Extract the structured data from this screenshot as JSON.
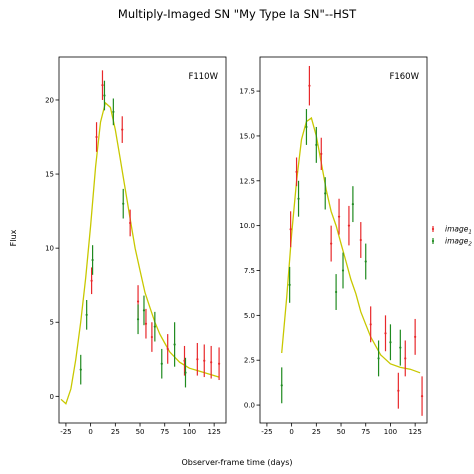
{
  "figure": {
    "title": "Multiply-Imaged SN \"My Type Ia SN\"--HST",
    "xlabel": "Observer-frame time (days)",
    "ylabel": "Flux"
  },
  "legend": {
    "placement": "right-center",
    "entries": [
      {
        "label": "image",
        "subscript": "1",
        "color": "#e8282b"
      },
      {
        "label": "image",
        "subscript": "2",
        "color": "#1f8a1f"
      }
    ]
  },
  "chart_data": [
    {
      "type": "scatter",
      "panel_label": "F110W",
      "xlim": [
        -32,
        137
      ],
      "ylim": [
        -1.8,
        22.9
      ],
      "xticks": [
        -25,
        0,
        25,
        50,
        75,
        100,
        125
      ],
      "yticks": [
        0,
        5,
        10,
        15,
        20
      ],
      "model_color": "#c8c800",
      "series": [
        {
          "name": "image1",
          "color": "#e8282b",
          "points": [
            {
              "x": 1,
              "y": 7.8,
              "err": 0.9
            },
            {
              "x": 6,
              "y": 17.5,
              "err": 1.0
            },
            {
              "x": 12,
              "y": 21.0,
              "err": 1.0
            },
            {
              "x": 32,
              "y": 18.0,
              "err": 0.9
            },
            {
              "x": 40,
              "y": 11.7,
              "err": 0.9
            },
            {
              "x": 48,
              "y": 6.4,
              "err": 1.1
            },
            {
              "x": 56,
              "y": 4.9,
              "err": 1.0
            },
            {
              "x": 62,
              "y": 4.0,
              "err": 1.0
            },
            {
              "x": 78,
              "y": 3.2,
              "err": 1.0
            },
            {
              "x": 95,
              "y": 2.4,
              "err": 1.0
            },
            {
              "x": 108,
              "y": 2.5,
              "err": 1.1
            },
            {
              "x": 115,
              "y": 2.4,
              "err": 1.1
            },
            {
              "x": 122,
              "y": 2.3,
              "err": 1.1
            },
            {
              "x": 130,
              "y": 2.2,
              "err": 1.1
            }
          ]
        },
        {
          "name": "image2",
          "color": "#1f8a1f",
          "points": [
            {
              "x": -10,
              "y": 1.8,
              "err": 1.0
            },
            {
              "x": -4,
              "y": 5.5,
              "err": 1.0
            },
            {
              "x": 2,
              "y": 9.2,
              "err": 1.0
            },
            {
              "x": 14,
              "y": 20.3,
              "err": 1.0
            },
            {
              "x": 23,
              "y": 19.2,
              "err": 0.9
            },
            {
              "x": 33,
              "y": 13.0,
              "err": 1.0
            },
            {
              "x": 48,
              "y": 5.2,
              "err": 1.0
            },
            {
              "x": 54,
              "y": 5.8,
              "err": 1.0
            },
            {
              "x": 65,
              "y": 4.7,
              "err": 1.0
            },
            {
              "x": 72,
              "y": 2.2,
              "err": 1.0
            },
            {
              "x": 85,
              "y": 3.5,
              "err": 1.5
            },
            {
              "x": 96,
              "y": 1.6,
              "err": 1.0
            }
          ]
        }
      ],
      "model": {
        "x": [
          -30,
          -25,
          -20,
          -15,
          -10,
          -5,
          0,
          5,
          10,
          15,
          20,
          25,
          30,
          35,
          40,
          45,
          50,
          55,
          60,
          65,
          70,
          75,
          80,
          90,
          100,
          110,
          120,
          130
        ],
        "y": [
          -0.2,
          -0.5,
          0.5,
          2.5,
          5.0,
          8.0,
          11.5,
          15.5,
          18.5,
          19.8,
          19.5,
          18.0,
          16.0,
          14.0,
          12.0,
          10.0,
          8.5,
          7.0,
          6.0,
          5.0,
          4.2,
          3.6,
          3.0,
          2.3,
          1.9,
          1.7,
          1.5,
          1.3
        ]
      }
    },
    {
      "type": "scatter",
      "panel_label": "F160W",
      "xlim": [
        -32,
        137
      ],
      "ylim": [
        -1.0,
        19.4
      ],
      "xticks": [
        -25,
        0,
        25,
        50,
        75,
        100,
        125
      ],
      "yticks": [
        0.0,
        2.5,
        5.0,
        7.5,
        10.0,
        12.5,
        15.0,
        17.5
      ],
      "model_color": "#c8c800",
      "series": [
        {
          "name": "image1",
          "color": "#e8282b",
          "points": [
            {
              "x": -1,
              "y": 9.8,
              "err": 1.0
            },
            {
              "x": 5,
              "y": 13.0,
              "err": 0.8
            },
            {
              "x": 18,
              "y": 17.8,
              "err": 1.1
            },
            {
              "x": 30,
              "y": 14.0,
              "err": 0.9
            },
            {
              "x": 40,
              "y": 9.0,
              "err": 1.0
            },
            {
              "x": 48,
              "y": 10.5,
              "err": 1.0
            },
            {
              "x": 58,
              "y": 10.0,
              "err": 1.1
            },
            {
              "x": 70,
              "y": 9.2,
              "err": 1.0
            },
            {
              "x": 80,
              "y": 4.5,
              "err": 1.0
            },
            {
              "x": 95,
              "y": 4.0,
              "err": 1.0
            },
            {
              "x": 108,
              "y": 0.8,
              "err": 1.0
            },
            {
              "x": 115,
              "y": 2.6,
              "err": 1.0
            },
            {
              "x": 125,
              "y": 3.8,
              "err": 1.0
            },
            {
              "x": 132,
              "y": 0.5,
              "err": 1.1
            }
          ]
        },
        {
          "name": "image2",
          "color": "#1f8a1f",
          "points": [
            {
              "x": -10,
              "y": 1.1,
              "err": 1.0
            },
            {
              "x": -2,
              "y": 6.7,
              "err": 1.0
            },
            {
              "x": 7,
              "y": 11.5,
              "err": 1.0
            },
            {
              "x": 15,
              "y": 15.5,
              "err": 1.0
            },
            {
              "x": 25,
              "y": 14.5,
              "err": 1.0
            },
            {
              "x": 34,
              "y": 11.8,
              "err": 0.9
            },
            {
              "x": 45,
              "y": 6.3,
              "err": 1.0
            },
            {
              "x": 52,
              "y": 7.5,
              "err": 1.0
            },
            {
              "x": 62,
              "y": 11.2,
              "err": 1.0
            },
            {
              "x": 75,
              "y": 8.0,
              "err": 1.0
            },
            {
              "x": 88,
              "y": 2.6,
              "err": 1.0
            },
            {
              "x": 100,
              "y": 3.5,
              "err": 1.0
            },
            {
              "x": 110,
              "y": 3.2,
              "err": 1.0
            }
          ]
        }
      ],
      "model": {
        "x": [
          -10,
          -5,
          0,
          5,
          10,
          15,
          20,
          25,
          30,
          35,
          40,
          45,
          50,
          55,
          60,
          65,
          70,
          75,
          80,
          90,
          100,
          110,
          120,
          130
        ],
        "y": [
          2.9,
          6.0,
          9.5,
          12.5,
          14.8,
          15.8,
          16.0,
          15.0,
          13.5,
          12.0,
          10.8,
          10.0,
          9.0,
          8.0,
          7.0,
          6.2,
          5.2,
          4.5,
          3.8,
          2.8,
          2.3,
          2.1,
          2.0,
          1.8
        ]
      }
    }
  ]
}
